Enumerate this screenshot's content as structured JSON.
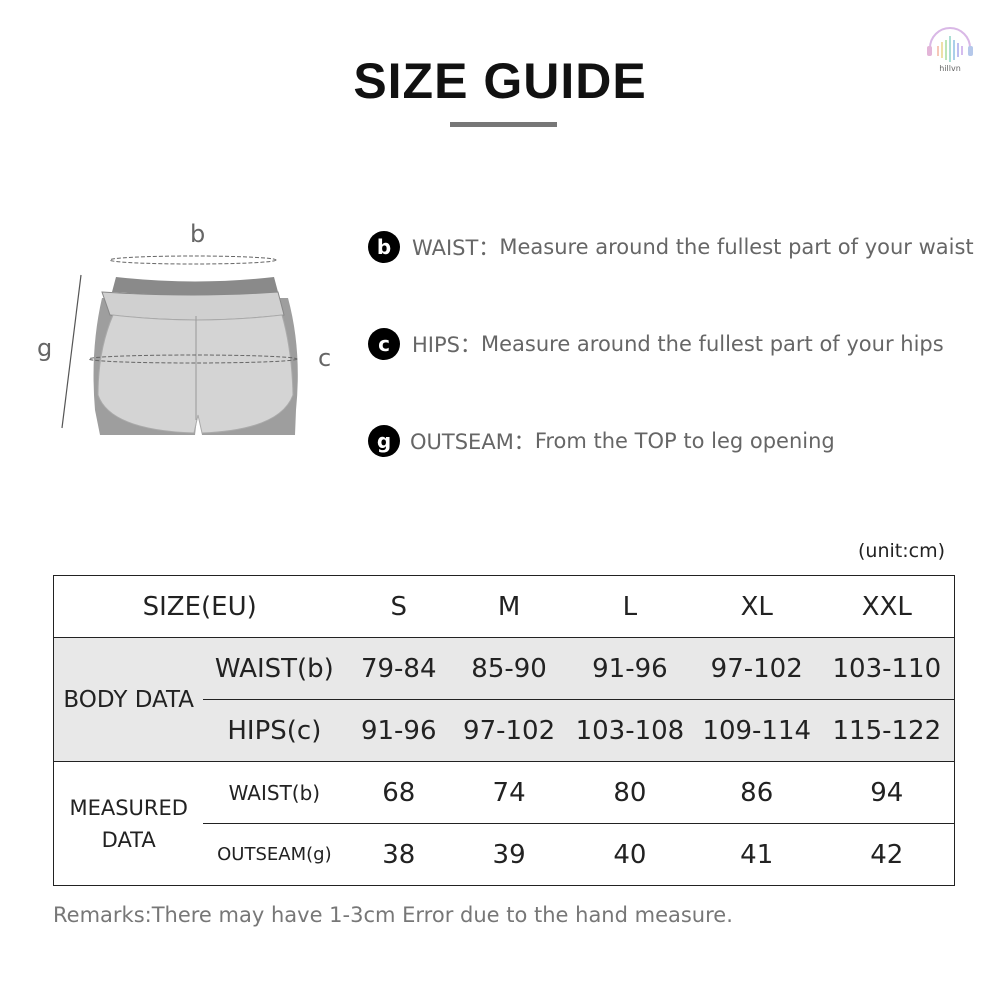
{
  "title": "SIZE GUIDE",
  "logo": {
    "text": "hillvn"
  },
  "diagram": {
    "labels": {
      "b": "b",
      "c": "c",
      "g": "g"
    }
  },
  "measurements": [
    {
      "key": "b",
      "name": "WAIST：",
      "desc": "Measure around the fullest part of your waist"
    },
    {
      "key": "c",
      "name": "HIPS：",
      "desc": "Measure around the fullest part of your hips"
    },
    {
      "key": "g",
      "name": "OUTSEAM：",
      "desc": "From the TOP to leg opening"
    }
  ],
  "unit": "(unit:cm)",
  "table": {
    "header": "SIZE(EU)",
    "sizes": [
      "S",
      "M",
      "L",
      "XL",
      "XXL"
    ],
    "groups": [
      {
        "label": "BODY DATA",
        "rows": [
          {
            "label": "WAIST(b)",
            "values": [
              "79-84",
              "85-90",
              "91-96",
              "97-102",
              "103-110"
            ]
          },
          {
            "label": "HIPS(c)",
            "values": [
              "91-96",
              "97-102",
              "103-108",
              "109-114",
              "115-122"
            ]
          }
        ]
      },
      {
        "label": "MEASURED DATA",
        "rows": [
          {
            "label": "WAIST(b)",
            "values": [
              "68",
              "74",
              "80",
              "86",
              "94"
            ]
          },
          {
            "label": "OUTSEAM(g)",
            "values": [
              "38",
              "39",
              "40",
              "41",
              "42"
            ]
          }
        ]
      }
    ]
  },
  "remarks": "Remarks:There may have 1-3cm Error due to the hand measure."
}
